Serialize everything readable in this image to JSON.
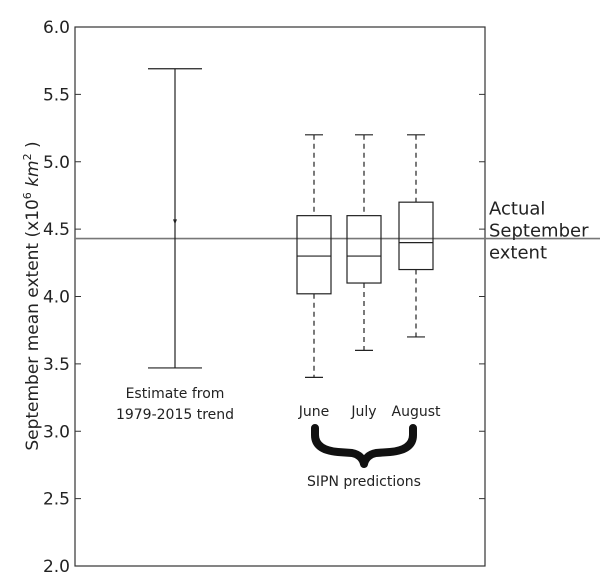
{
  "chart_data": {
    "type": "box",
    "ylabel_parts": {
      "prefix": "September mean extent (x10",
      "exp": "6",
      "unit": " km",
      "unit_exp": "2",
      "suffix": " )"
    },
    "ylim": [
      2.0,
      6.0
    ],
    "yticks": [
      "2.0",
      "2.5",
      "3.0",
      "3.5",
      "4.0",
      "4.5",
      "5.0",
      "5.5",
      "6.0"
    ],
    "reference_line": {
      "value": 4.43,
      "label_lines": [
        "Actual",
        "September",
        "extent"
      ]
    },
    "trend_estimate": {
      "label_lines": [
        "Estimate from",
        "1979-2015 trend"
      ],
      "low": 3.47,
      "high": 5.69,
      "center": 4.55
    },
    "boxes": [
      {
        "name": "June",
        "whisker_low": 3.4,
        "q1": 4.02,
        "median": 4.3,
        "q3": 4.6,
        "whisker_high": 5.2
      },
      {
        "name": "July",
        "whisker_low": 3.6,
        "q1": 4.1,
        "median": 4.3,
        "q3": 4.6,
        "whisker_high": 5.2
      },
      {
        "name": "August",
        "whisker_low": 3.7,
        "q1": 4.2,
        "median": 4.4,
        "q3": 4.7,
        "whisker_high": 5.2
      }
    ],
    "group_label": "SIPN predictions"
  }
}
